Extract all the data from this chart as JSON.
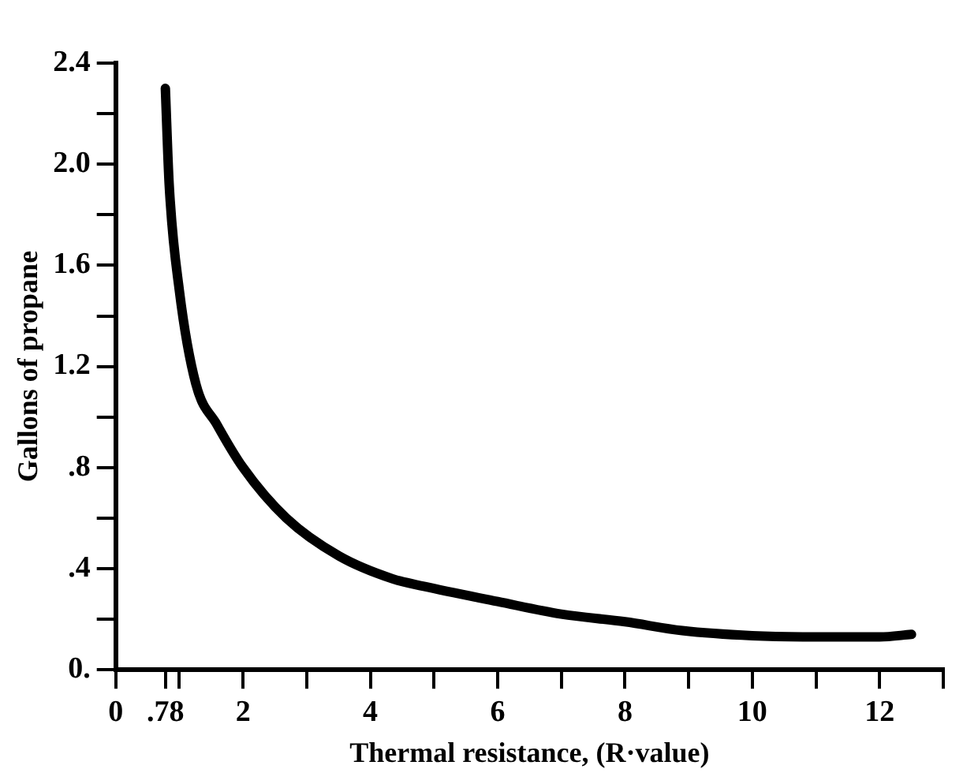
{
  "chart_data": {
    "type": "line",
    "xlabel": "Thermal resistance, (R·value)",
    "ylabel": "Gallons of propane",
    "x": [
      0.78,
      0.84,
      1.0,
      1.26,
      1.59,
      2.0,
      2.68,
      3.51,
      4.35,
      4.84,
      6.0,
      7.0,
      8.0,
      8.9,
      10.0,
      11.1,
      12.0,
      12.5
    ],
    "series": [
      {
        "color": "#000000",
        "values": [
          2.3,
          1.92,
          1.5,
          1.13,
          0.97,
          0.8,
          0.6,
          0.45,
          0.36,
          0.33,
          0.27,
          0.22,
          0.19,
          0.155,
          0.135,
          0.13,
          0.13,
          0.14
        ]
      }
    ],
    "xlim": [
      0,
      13
    ],
    "xticks": [
      0,
      {
        "value": 0.78,
        "label": ".78"
      },
      {
        "value": 1,
        "label": null
      },
      2,
      {
        "value": 3,
        "label": null
      },
      4,
      {
        "value": 5,
        "label": null
      },
      6,
      {
        "value": 7,
        "label": null
      },
      8,
      {
        "value": 9,
        "label": null
      },
      10,
      {
        "value": 11,
        "label": null
      },
      12,
      {
        "value": 13,
        "label": null
      }
    ],
    "ylim": [
      0,
      2.4
    ],
    "yticks": [
      {
        "value": 0,
        "label": "0."
      },
      {
        "value": 0.2,
        "label": null
      },
      {
        "value": 0.4,
        "label": ".4"
      },
      {
        "value": 0.6,
        "label": null
      },
      {
        "value": 0.8,
        "label": ".8"
      },
      {
        "value": 1.0,
        "label": null
      },
      1.2,
      {
        "value": 1.4,
        "label": null
      },
      1.6,
      {
        "value": 1.8,
        "label": null
      },
      {
        "value": 2.0,
        "label": "2.0"
      },
      {
        "value": 2.2,
        "label": null
      },
      2.4
    ],
    "grid": false,
    "legend": false,
    "marker": "none",
    "line_style": "solid"
  }
}
